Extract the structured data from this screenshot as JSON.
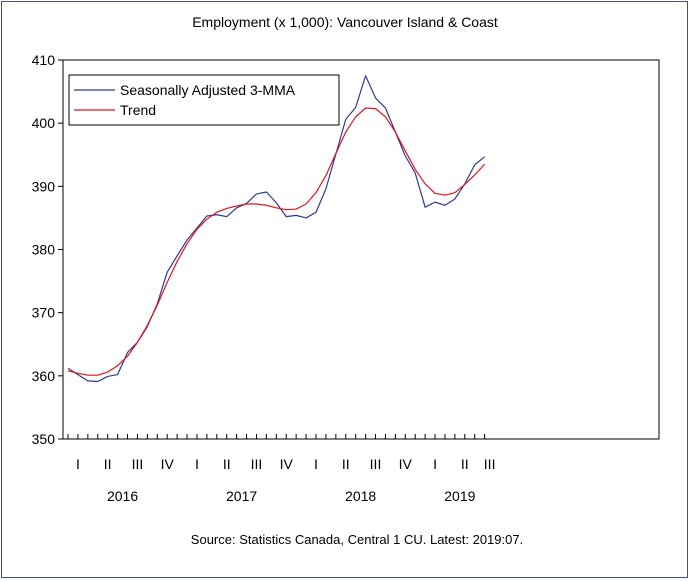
{
  "chart_data": {
    "type": "line",
    "title": "Employment (x 1,000): Vancouver Island & Coast",
    "source": "Source:  Statistics Canada, Central 1 CU. Latest: 2019:07.",
    "ylim": [
      350,
      410
    ],
    "yticks": [
      350,
      360,
      370,
      380,
      390,
      400,
      410
    ],
    "quarter_labels": [
      "I",
      "II",
      "III",
      "IV",
      "I",
      "II",
      "III",
      "IV",
      "I",
      "II",
      "III",
      "IV",
      "I",
      "II",
      "III"
    ],
    "year_labels": [
      "2016",
      "2017",
      "2018",
      "2019"
    ],
    "legend_placement": "top-left",
    "x": [
      "2016-01",
      "2016-02",
      "2016-03",
      "2016-04",
      "2016-05",
      "2016-06",
      "2016-07",
      "2016-08",
      "2016-09",
      "2016-10",
      "2016-11",
      "2016-12",
      "2017-01",
      "2017-02",
      "2017-03",
      "2017-04",
      "2017-05",
      "2017-06",
      "2017-07",
      "2017-08",
      "2017-09",
      "2017-10",
      "2017-11",
      "2017-12",
      "2018-01",
      "2018-02",
      "2018-03",
      "2018-04",
      "2018-05",
      "2018-06",
      "2018-07",
      "2018-08",
      "2018-09",
      "2018-10",
      "2018-11",
      "2018-12",
      "2019-01",
      "2019-02",
      "2019-03",
      "2019-04",
      "2019-05",
      "2019-06",
      "2019-07"
    ],
    "series": [
      {
        "name": "Seasonally Adjusted 3-MMA",
        "color": "#2f3a8f",
        "values": [
          361.2,
          360.2,
          359.2,
          359.1,
          359.9,
          360.2,
          363.7,
          365.3,
          367.8,
          371.4,
          376.4,
          379.0,
          381.5,
          383.4,
          385.3,
          385.5,
          385.2,
          386.6,
          387.3,
          388.8,
          389.1,
          387.4,
          385.2,
          385.4,
          385.0,
          385.9,
          389.6,
          395.1,
          400.6,
          402.5,
          407.5,
          404.0,
          402.4,
          398.6,
          394.8,
          392.1,
          386.7,
          387.5,
          387.0,
          388.0,
          390.4,
          393.4,
          394.7
        ]
      },
      {
        "name": "Trend",
        "color": "#e0141e",
        "values": [
          360.8,
          360.4,
          360.1,
          360.1,
          360.6,
          361.6,
          363.1,
          365.3,
          368.0,
          371.2,
          374.8,
          378.1,
          380.9,
          383.2,
          384.8,
          385.9,
          386.5,
          386.9,
          387.2,
          387.2,
          387.0,
          386.6,
          386.3,
          386.4,
          387.2,
          389.0,
          391.7,
          395.2,
          398.6,
          401.0,
          402.4,
          402.3,
          401.0,
          398.6,
          395.6,
          392.7,
          390.4,
          388.9,
          388.6,
          389.0,
          390.3,
          391.8,
          393.5
        ]
      }
    ]
  }
}
